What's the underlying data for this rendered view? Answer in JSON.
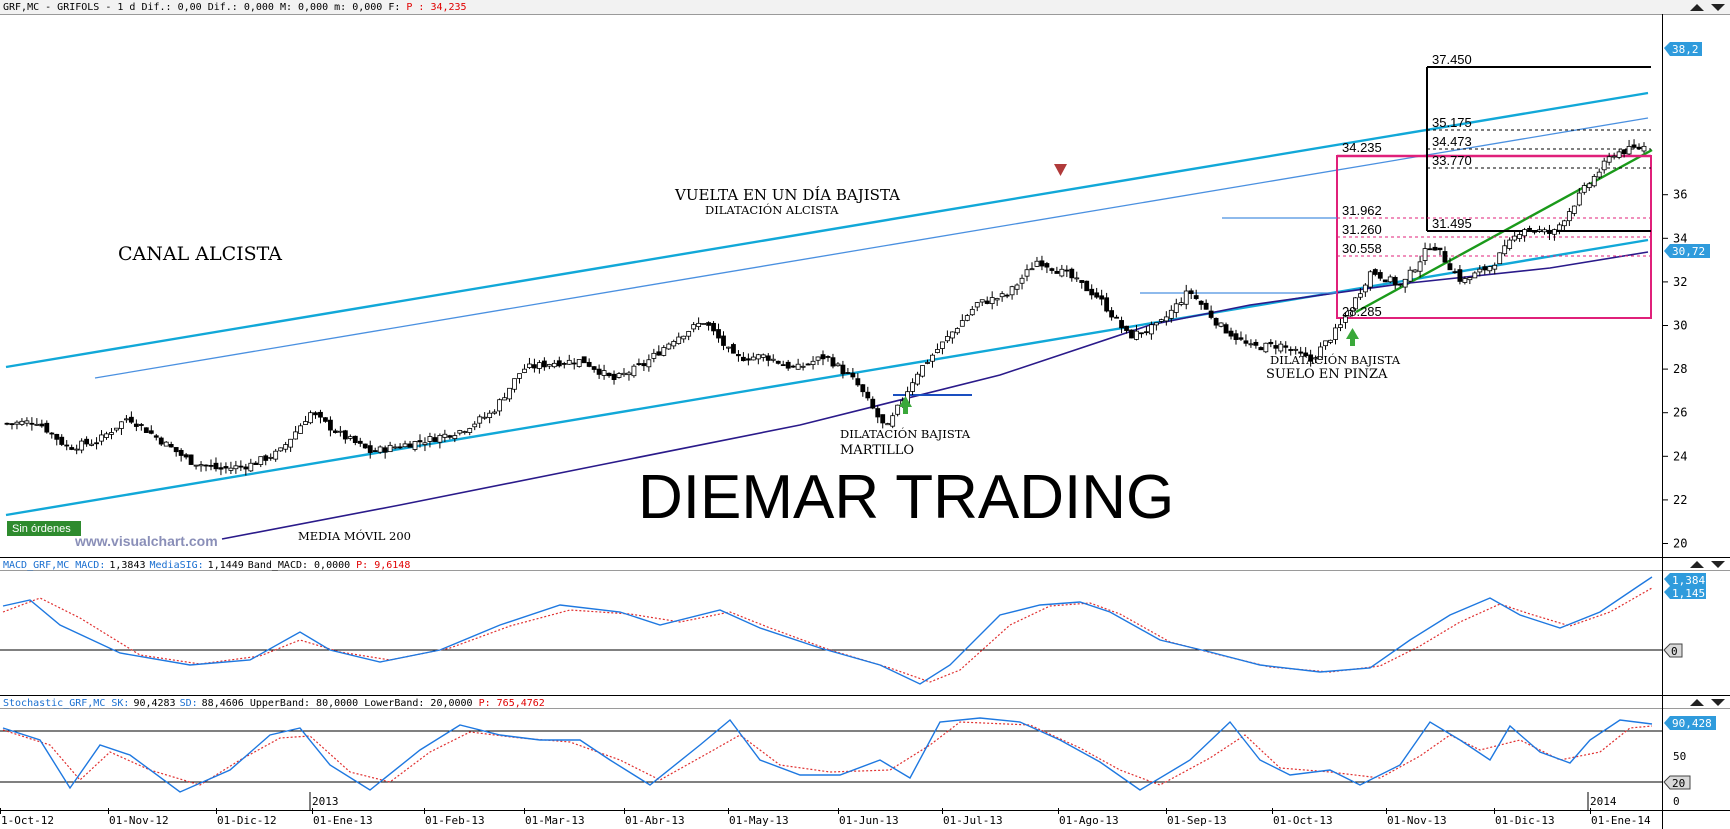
{
  "header": {
    "main": "GRF,MC - GRIFOLS -  1 d Dif.: 0,00 Dif.: 0,000 M: 0,000 m: 0,000 F:",
    "main_value": "P : 34,235",
    "macd_a": "MACD_GRF,MC MACD:",
    "macd_b": "1,3843",
    "macd_c": "MediaSIG:",
    "macd_d": "1,1449",
    "macd_e": "Band_MACD: 0,0000",
    "macd_f": "P: 9,6148",
    "stoch_a": "Stochastic_GRF,MC SK:",
    "stoch_b": "90,4283",
    "stoch_c": "SD:",
    "stoch_d": "88,4606 UpperBand: 80,0000 LowerBand: 20,0000",
    "stoch_e": "P: 765,4762"
  },
  "annotations": {
    "canal": "CANAL ALCISTA",
    "vuelta": "VUELTA EN UN DÍA BAJISTA",
    "dil_alcista": "DILATACIÓN ALCISTA",
    "dil_bajista_1": "DILATACIÓN BAJISTA",
    "martillo": "MARTILLO",
    "dil_bajista_2": "DILATACIÓN BAJISTA",
    "suelo": "SUELO EN PINZA",
    "media_movil": "MEDIA MÓVIL 200",
    "watermark": "www.visualchart.com",
    "brand": "DIEMAR TRADING",
    "sin_ordenes": "Sin órdenes"
  },
  "levels": [
    "37.450",
    "35.175",
    "34.473",
    "34.235",
    "33.770",
    "31.962",
    "31.260",
    "31.495",
    "30.558",
    "28.285"
  ],
  "price_tags": {
    "last": "38,2",
    "ma": "30,72",
    "macd1": "1,384",
    "macd2": "1,145",
    "macd_zero": "0",
    "stoch1": "90,428",
    "stoch_50": "50",
    "stoch_20": "20",
    "stoch_0": "0"
  },
  "colors": {
    "channel": "#11a8d8",
    "ma200": "#2a1a8a",
    "box": "#e0207a",
    "trend": "#1a9a1a",
    "macd": "#1e78e0",
    "signal": "#e03030",
    "tag": "#2f9bdc"
  },
  "chart_data": [
    {
      "type": "candlestick",
      "title": "GRF,MC - GRIFOLS",
      "x_ticks": [
        "1-Oct-12",
        "01-Nov-12",
        "01-Dic-12",
        "01-Ene-13",
        "01-Feb-13",
        "01-Mar-13",
        "01-Abr-13",
        "01-May-13",
        "01-Jun-13",
        "01-Jul-13",
        "01-Ago-13",
        "01-Sep-13",
        "01-Oct-13",
        "01-Nov-13",
        "01-Dic-13",
        "01-Ene-14"
      ],
      "year_labels": [
        "2013",
        "2014"
      ],
      "y_ticks": [
        20,
        22,
        24,
        26,
        28,
        30,
        32,
        34,
        36
      ],
      "ylim": [
        19.7,
        39.6
      ],
      "close_path": [
        [
          "1-Oct-12",
          25.5
        ],
        [
          "1-Oct-12+",
          25.6
        ],
        [
          "15-Oct-12",
          24.4
        ],
        [
          "25-Oct-12",
          24.7
        ],
        [
          "01-Nov-12",
          25.8
        ],
        [
          "10-Nov-12",
          24.8
        ],
        [
          "20-Nov-12",
          23.8
        ],
        [
          "01-Dic-12",
          23.4
        ],
        [
          "10-Dic-12",
          23.6
        ],
        [
          "20-Dic-12",
          24.2
        ],
        [
          "01-Ene-13",
          26.0
        ],
        [
          "10-Ene-13",
          25.0
        ],
        [
          "20-Ene-13",
          24.2
        ],
        [
          "28-Ene-13",
          24.5
        ],
        [
          "01-Feb-13",
          24.8
        ],
        [
          "10-Feb-13",
          25.2
        ],
        [
          "20-Feb-13",
          26.0
        ],
        [
          "01-Mar-13",
          28.0
        ],
        [
          "10-Mar-13",
          28.3
        ],
        [
          "20-Mar-13",
          28.4
        ],
        [
          "01-Abr-13",
          27.5
        ],
        [
          "10-Abr-13",
          28.2
        ],
        [
          "20-Abr-13",
          29.4
        ],
        [
          "28-Abr-13",
          30.2
        ],
        [
          "01-May-13",
          28.5
        ],
        [
          "10-May-13",
          28.6
        ],
        [
          "20-May-13",
          28.0
        ],
        [
          "01-Jun-13",
          28.6
        ],
        [
          "10-Jun-13",
          27.4
        ],
        [
          "20-Jun-13",
          25.2
        ],
        [
          "28-Jun-13",
          27.8
        ],
        [
          "01-Jul-13",
          29.4
        ],
        [
          "10-Jul-13",
          31.0
        ],
        [
          "20-Jul-13",
          31.4
        ],
        [
          "01-Ago-13",
          33.0
        ],
        [
          "10-Ago-13",
          32.3
        ],
        [
          "20-Ago-13",
          31.3
        ],
        [
          "28-Ago-13",
          29.5
        ],
        [
          "01-Sep-13",
          30.0
        ],
        [
          "10-Sep-13",
          31.6
        ],
        [
          "20-Sep-13",
          30.0
        ],
        [
          "01-Oct-13",
          29.0
        ],
        [
          "10-Oct-13",
          29.1
        ],
        [
          "18-Oct-13",
          28.4
        ],
        [
          "25-Oct-13",
          30.0
        ],
        [
          "01-Nov-13",
          32.5
        ],
        [
          "10-Nov-13",
          31.8
        ],
        [
          "20-Nov-13",
          33.8
        ],
        [
          "01-Dic-13",
          32.0
        ],
        [
          "10-Dic-13",
          32.8
        ],
        [
          "20-Dic-13",
          34.5
        ],
        [
          "28-Dic-13",
          34.2
        ],
        [
          "01-Ene-14",
          36.2
        ],
        [
          "08-Ene-14",
          37.9
        ],
        [
          "14-Ene-14",
          38.2
        ]
      ],
      "series": [
        {
          "name": "MEDIA MÓVIL 200",
          "values": [
            [
              20.0,
              19.9
            ],
            [
              30.72,
              30.72
            ]
          ]
        }
      ],
      "levels": [
        37.45,
        35.175,
        34.473,
        34.235,
        33.77,
        31.962,
        31.26,
        31.495,
        30.558,
        28.285
      ]
    },
    {
      "type": "line",
      "title": "MACD_GRF,MC",
      "series": [
        {
          "name": "MACD",
          "last": 1.3843
        },
        {
          "name": "MediaSIG",
          "last": 1.1449
        }
      ]
    },
    {
      "type": "line",
      "title": "Stochastic_GRF,MC",
      "series": [
        {
          "name": "SK",
          "last": 90.4283
        },
        {
          "name": "SD",
          "last": 88.4606
        }
      ],
      "y_ticks": [
        0,
        20,
        50
      ]
    }
  ]
}
